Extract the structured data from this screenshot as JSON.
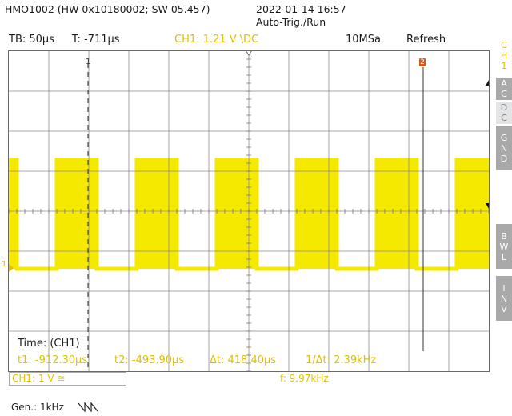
{
  "header": {
    "device": "HMO1002 (HW 0x10180002; SW 05.457)",
    "datetime": "2022-01-14 16:57",
    "trigger_mode": "Auto-Trig./Run"
  },
  "settings": {
    "timebase": "TB: 50µs",
    "trigger_time": "T: -711µs",
    "channel": "CH1: 1.21 V \\DC",
    "sample_rate": "10MSa",
    "acq_mode": "Refresh"
  },
  "right_panel": {
    "channel_label": [
      "C",
      "H",
      "1"
    ],
    "buttons": [
      {
        "label": [
          "A",
          "C"
        ],
        "selected": false
      },
      {
        "label": [
          "D",
          "C"
        ],
        "selected": true
      },
      {
        "label": [
          "G",
          "N",
          "D"
        ],
        "selected": false
      },
      {
        "label": [
          "B",
          "W",
          "L"
        ],
        "selected": false
      },
      {
        "label": [
          "I",
          "N",
          "V"
        ],
        "selected": false
      }
    ]
  },
  "measurement": {
    "title": "Time: (CH1)",
    "t1": "t1: -912.30µs",
    "t2": "t2: -493.90µs",
    "dt": "Δt: 418.40µs",
    "inv_dt": "1/Δt: 2.39kHz"
  },
  "markers": {
    "cursor1": "1",
    "cursor2": "2",
    "ch_ground": "1"
  },
  "status": {
    "channel_scale": "CH1: 1 V ≅",
    "frequency": "f: 9.97kHz"
  },
  "generator": {
    "label": "Gen.: 1kHz",
    "waveform_icon": "sawtooth-wave-icon"
  },
  "colors": {
    "trace": "#f5e900",
    "text_yellow": "#e0c000",
    "grid": "#8c8c8c",
    "cursor2_marker": "#d55a1a"
  },
  "waveform": {
    "type": "square",
    "frequency": "9.97kHz",
    "duty_high_fraction": 0.5
  }
}
